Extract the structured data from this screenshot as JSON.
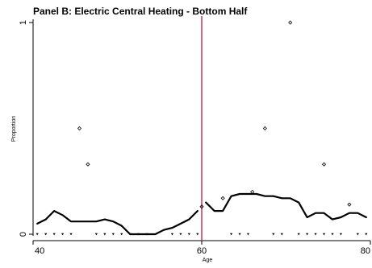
{
  "chart_data": {
    "type": "line",
    "title": "Panel B: Electric Central Heating - Bottom Half",
    "xlabel": "Age",
    "ylabel": "Proportion",
    "xlim": [
      40,
      80
    ],
    "ylim": [
      0,
      1
    ],
    "x_ticks": [
      "40",
      "60",
      "80"
    ],
    "y_ticks": [
      "0",
      "1"
    ],
    "cutoff_x": 60,
    "colors": {
      "line": "#000000",
      "cutoff": "#cc3355",
      "axis": "#000000"
    },
    "series": [
      {
        "type": "line",
        "segment": "left",
        "x": [
          40.5,
          41.5,
          42.5,
          43.5,
          44.5,
          45.5,
          46.5,
          47.5,
          48.5,
          49.5,
          50.5,
          51.5,
          52.5,
          53.5,
          54.5,
          55.5,
          56.5,
          57.5,
          58.5,
          59.5
        ],
        "y": [
          0.05,
          0.07,
          0.11,
          0.09,
          0.06,
          0.06,
          0.06,
          0.06,
          0.07,
          0.06,
          0.04,
          0.0,
          0.0,
          0.0,
          0.0,
          0.02,
          0.03,
          0.05,
          0.07,
          0.11
        ]
      },
      {
        "type": "line",
        "segment": "right",
        "x": [
          60.5,
          61.5,
          62.5,
          63.5,
          64.5,
          65.5,
          66.5,
          67.5,
          68.5,
          69.5,
          70.5,
          71.5,
          72.5,
          73.5,
          74.5,
          75.5,
          76.5,
          77.5,
          78.5,
          79.5
        ],
        "y": [
          0.15,
          0.11,
          0.11,
          0.18,
          0.19,
          0.19,
          0.19,
          0.18,
          0.18,
          0.17,
          0.17,
          0.15,
          0.08,
          0.1,
          0.1,
          0.07,
          0.08,
          0.1,
          0.1,
          0.08
        ]
      },
      {
        "type": "scatter",
        "name": "diamonds",
        "x": [
          45.5,
          46.5,
          60.0,
          62.5,
          66.0,
          67.5,
          70.5,
          74.5,
          77.5
        ],
        "y": [
          0.5,
          0.33,
          0.13,
          0.17,
          0.2,
          0.5,
          1.0,
          0.33,
          0.14
        ]
      },
      {
        "type": "scatter",
        "name": "zeros",
        "x": [
          40.5,
          41.5,
          42.5,
          43.5,
          44.5,
          47.5,
          48.5,
          49.5,
          50.5,
          51.5,
          52.5,
          53.5,
          56.5,
          57.5,
          58.5,
          59.5,
          63.5,
          64.5,
          65.5,
          68.5,
          69.5,
          71.5,
          72.5,
          73.5,
          74.5,
          75.5,
          76.5,
          78.5,
          79.5
        ],
        "y": [
          0,
          0,
          0,
          0,
          0,
          0,
          0,
          0,
          0,
          0,
          0,
          0,
          0,
          0,
          0,
          0,
          0,
          0,
          0,
          0,
          0,
          0,
          0,
          0,
          0,
          0,
          0,
          0,
          0
        ]
      }
    ]
  }
}
